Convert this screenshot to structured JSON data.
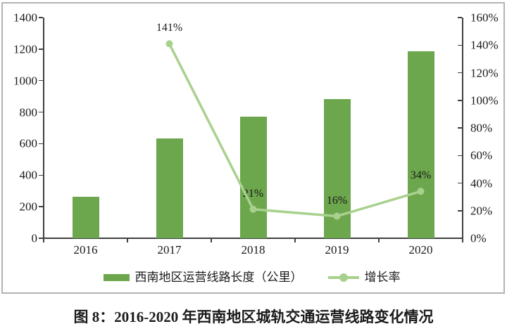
{
  "chart_data": {
    "type": "bar+line",
    "title": "图 8：2016-2020 年西南地区城轨交通运营线路变化情况",
    "categories": [
      "2016",
      "2017",
      "2018",
      "2019",
      "2020"
    ],
    "series": [
      {
        "name": "西南地区运营线路长度（公里）",
        "type": "bar",
        "axis": "left",
        "values": [
          265,
          635,
          770,
          885,
          1185
        ],
        "color": "#6ca64d"
      },
      {
        "name": "增长率",
        "type": "line",
        "axis": "right",
        "values": [
          null,
          141,
          21,
          16,
          34
        ],
        "unit": "%",
        "labels": [
          "",
          "141%",
          "21%",
          "16%",
          "34%"
        ],
        "color": "#a9d18e"
      }
    ],
    "left_axis": {
      "min": 0,
      "max": 1400,
      "step": 200,
      "ticks": [
        0,
        200,
        400,
        600,
        800,
        1000,
        1200,
        1400
      ]
    },
    "right_axis": {
      "min": 0,
      "max": 160,
      "step": 20,
      "ticks": [
        0,
        20,
        40,
        60,
        80,
        100,
        120,
        140,
        160
      ],
      "suffix": "%"
    },
    "grid": false,
    "legend_position": "bottom",
    "axis_color": "#404040",
    "frame_color": "#b3b3b3"
  },
  "caption": {
    "text": "图 8：2016-2020 年西南地区城轨交通运营线路变化情况"
  }
}
